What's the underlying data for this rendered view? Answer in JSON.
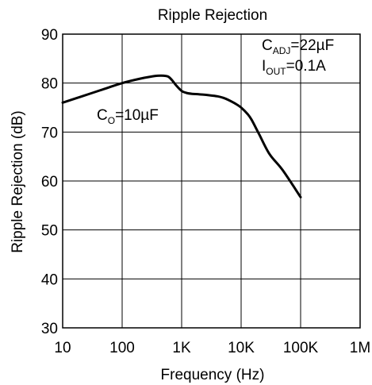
{
  "chart_data": {
    "type": "line",
    "title": "Ripple Rejection",
    "xlabel": "Frequency (Hz)",
    "ylabel": "Ripple Rejection (dB)",
    "xscale": "log",
    "xlim": [
      10,
      1000000
    ],
    "ylim": [
      30,
      90
    ],
    "grid": true,
    "x_ticks": [
      10,
      100,
      1000,
      10000,
      100000,
      1000000
    ],
    "x_tick_labels": [
      "10",
      "100",
      "1K",
      "10K",
      "100K",
      "1M"
    ],
    "y_ticks": [
      30,
      40,
      50,
      60,
      70,
      80,
      90
    ],
    "y_tick_labels": [
      "30",
      "40",
      "50",
      "60",
      "70",
      "80",
      "90"
    ],
    "series": [
      {
        "x": [
          10,
          20,
          50,
          100,
          200,
          300,
          400,
          500,
          600,
          700,
          800,
          1000,
          1200,
          1500,
          2000,
          3000,
          4000,
          5000,
          6000,
          8000,
          10000,
          13000,
          15000,
          20000,
          30000,
          50000,
          100000
        ],
        "y": [
          76.0,
          77.2,
          78.8,
          80.0,
          80.9,
          81.3,
          81.5,
          81.5,
          81.3,
          80.5,
          79.6,
          78.4,
          78.0,
          77.8,
          77.7,
          77.5,
          77.3,
          77.0,
          76.6,
          75.8,
          75.0,
          73.6,
          72.5,
          69.6,
          65.5,
          62.2,
          56.7
        ]
      }
    ],
    "annotations": {
      "co": {
        "main": "C",
        "sub": "O",
        "rest": "=10µF"
      },
      "cadj": {
        "main": "C",
        "sub": "ADJ",
        "rest": "=22µF"
      },
      "iout": {
        "main": "I",
        "sub": "OUT",
        "rest": "=0.1A"
      }
    }
  }
}
